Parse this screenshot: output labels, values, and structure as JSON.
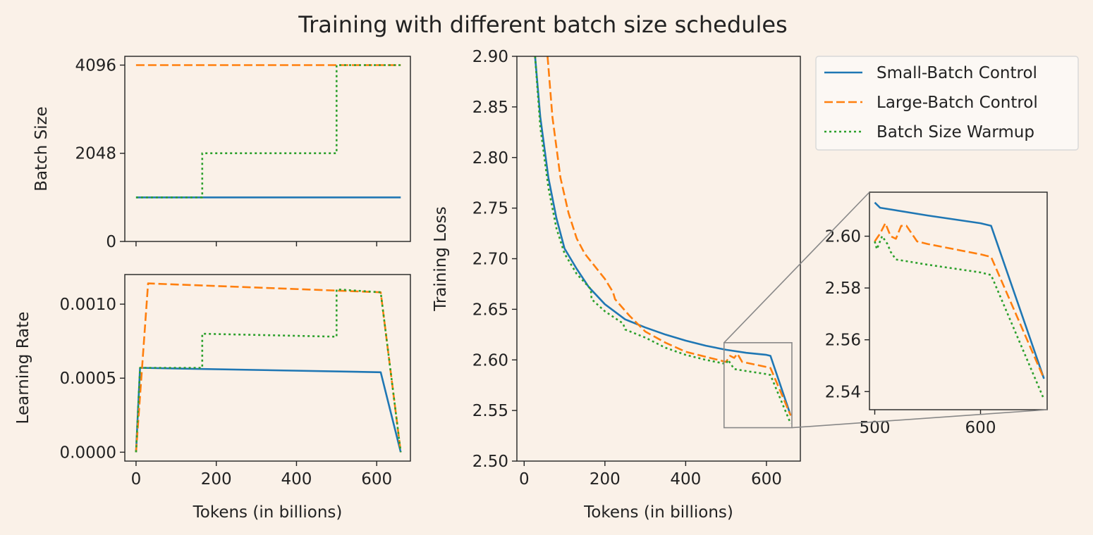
{
  "chart_data": [
    {
      "id": "batch_size",
      "type": "line",
      "title": "Training with different batch size schedules",
      "xlabel": "",
      "ylabel": "Batch Size",
      "xlim": [
        -28,
        684
      ],
      "ylim": [
        0,
        4300
      ],
      "yticks": [
        0,
        2048,
        4096
      ],
      "ytick_labels": [
        "0",
        "2048",
        "4096"
      ],
      "xticks": [
        0,
        200,
        400,
        600
      ],
      "xtick_labels": [
        "",
        "",
        "",
        ""
      ],
      "series": [
        {
          "name": "Small-Batch Control",
          "x": [
            0,
            660
          ],
          "y": [
            1024,
            1024
          ]
        },
        {
          "name": "Large-Batch Control",
          "x": [
            0,
            660
          ],
          "y": [
            4096,
            4096
          ]
        },
        {
          "name": "Batch Size Warmup",
          "x": [
            0,
            165,
            165,
            500,
            500,
            660
          ],
          "y": [
            1024,
            1024,
            2048,
            2048,
            4096,
            4096
          ]
        }
      ]
    },
    {
      "id": "learning_rate",
      "type": "line",
      "xlabel": "Tokens (in billions)",
      "ylabel": "Learning Rate",
      "xlim": [
        -28,
        684
      ],
      "ylim": [
        -6e-05,
        0.0012
      ],
      "yticks": [
        0,
        0.0005,
        0.001
      ],
      "ytick_labels": [
        "0.0000",
        "0.0005",
        "0.0010"
      ],
      "xticks": [
        0,
        200,
        400,
        600
      ],
      "xtick_labels": [
        "0",
        "200",
        "400",
        "600"
      ],
      "series": [
        {
          "name": "Small-Batch Control",
          "x": [
            0,
            10,
            610,
            660
          ],
          "y": [
            0,
            0.00057,
            0.00054,
            0
          ]
        },
        {
          "name": "Large-Batch Control",
          "x": [
            0,
            30,
            610,
            660
          ],
          "y": [
            0,
            0.00114,
            0.00108,
            0
          ]
        },
        {
          "name": "Batch Size Warmup",
          "x": [
            0,
            10,
            165,
            165,
            500,
            500,
            610,
            660
          ],
          "y": [
            0,
            0.00057,
            0.00057,
            0.0008,
            0.00078,
            0.0011,
            0.00108,
            0
          ]
        }
      ]
    },
    {
      "id": "training_loss",
      "type": "line",
      "xlabel": "Tokens (in billions)",
      "ylabel": "Training Loss",
      "xlim": [
        -18,
        684
      ],
      "ylim": [
        2.5,
        2.9
      ],
      "yticks": [
        2.5,
        2.55,
        2.6,
        2.65,
        2.7,
        2.75,
        2.8,
        2.85,
        2.9
      ],
      "ytick_labels": [
        "2.50",
        "2.55",
        "2.60",
        "2.65",
        "2.70",
        "2.75",
        "2.80",
        "2.85",
        "2.90"
      ],
      "xticks": [
        0,
        200,
        400,
        600
      ],
      "xtick_labels": [
        "0",
        "200",
        "400",
        "600"
      ],
      "series": [
        {
          "name": "Small-Batch Control",
          "x": [
            27,
            40,
            60,
            80,
            100,
            130,
            160,
            200,
            250,
            300,
            350,
            400,
            450,
            500,
            550,
            600,
            610,
            660
          ],
          "y": [
            2.9,
            2.84,
            2.78,
            2.74,
            2.71,
            2.69,
            2.672,
            2.655,
            2.64,
            2.632,
            2.625,
            2.619,
            2.614,
            2.61,
            2.607,
            2.605,
            2.604,
            2.545
          ]
        },
        {
          "name": "Large-Batch Control",
          "x": [
            58,
            70,
            90,
            110,
            130,
            150,
            170,
            200,
            220,
            225,
            260,
            300,
            350,
            400,
            450,
            500,
            510,
            520,
            528,
            540,
            600,
            610,
            660
          ],
          "y": [
            2.9,
            2.84,
            2.78,
            2.745,
            2.72,
            2.705,
            2.695,
            2.68,
            2.667,
            2.66,
            2.644,
            2.628,
            2.617,
            2.608,
            2.603,
            2.598,
            2.604,
            2.602,
            2.606,
            2.598,
            2.593,
            2.592,
            2.545
          ]
        },
        {
          "name": "Batch Size Warmup",
          "x": [
            27,
            40,
            60,
            80,
            100,
            130,
            165,
            167,
            200,
            245,
            250,
            300,
            350,
            400,
            450,
            500,
            505,
            510,
            520,
            550,
            600,
            610,
            660
          ],
          "y": [
            2.9,
            2.83,
            2.77,
            2.73,
            2.705,
            2.685,
            2.67,
            2.66,
            2.648,
            2.636,
            2.63,
            2.622,
            2.612,
            2.605,
            2.6,
            2.596,
            2.6,
            2.597,
            2.591,
            2.589,
            2.586,
            2.585,
            2.537
          ]
        }
      ]
    },
    {
      "id": "training_loss_inset",
      "type": "line",
      "xlabel": "",
      "ylabel": "",
      "xlim": [
        495,
        663
      ],
      "ylim": [
        2.533,
        2.617
      ],
      "yticks": [
        2.54,
        2.56,
        2.58,
        2.6
      ],
      "ytick_labels": [
        "2.54",
        "2.56",
        "2.58",
        "2.60"
      ],
      "xticks": [
        500,
        600
      ],
      "xtick_labels": [
        "500",
        "600"
      ],
      "series": [
        {
          "name": "Small-Batch Control",
          "x": [
            500,
            505,
            550,
            600,
            610,
            660
          ],
          "y": [
            2.613,
            2.611,
            2.608,
            2.605,
            2.604,
            2.545
          ]
        },
        {
          "name": "Large-Batch Control",
          "x": [
            500,
            505,
            510,
            515,
            520,
            525,
            530,
            540,
            550,
            600,
            610,
            660
          ],
          "y": [
            2.598,
            2.601,
            2.605,
            2.6,
            2.599,
            2.604,
            2.604,
            2.598,
            2.597,
            2.593,
            2.592,
            2.545
          ]
        },
        {
          "name": "Batch Size Warmup",
          "x": [
            500,
            502,
            507,
            512,
            515,
            520,
            550,
            600,
            610,
            660
          ],
          "y": [
            2.598,
            2.595,
            2.6,
            2.597,
            2.594,
            2.591,
            2.589,
            2.586,
            2.585,
            2.537
          ]
        }
      ]
    }
  ],
  "legend": {
    "entries": [
      "Small-Batch Control",
      "Large-Batch Control",
      "Batch Size Warmup"
    ],
    "placement": "top-right"
  },
  "series_styles": {
    "Small-Batch Control": {
      "color": "#1f77b4",
      "dash": "solid"
    },
    "Large-Batch Control": {
      "color": "#ff7f0e",
      "dash": "dashed"
    },
    "Batch Size Warmup": {
      "color": "#2ca02c",
      "dash": "dotted"
    }
  },
  "zoom_region": {
    "x": [
      495,
      663
    ],
    "y": [
      2.533,
      2.617
    ]
  }
}
